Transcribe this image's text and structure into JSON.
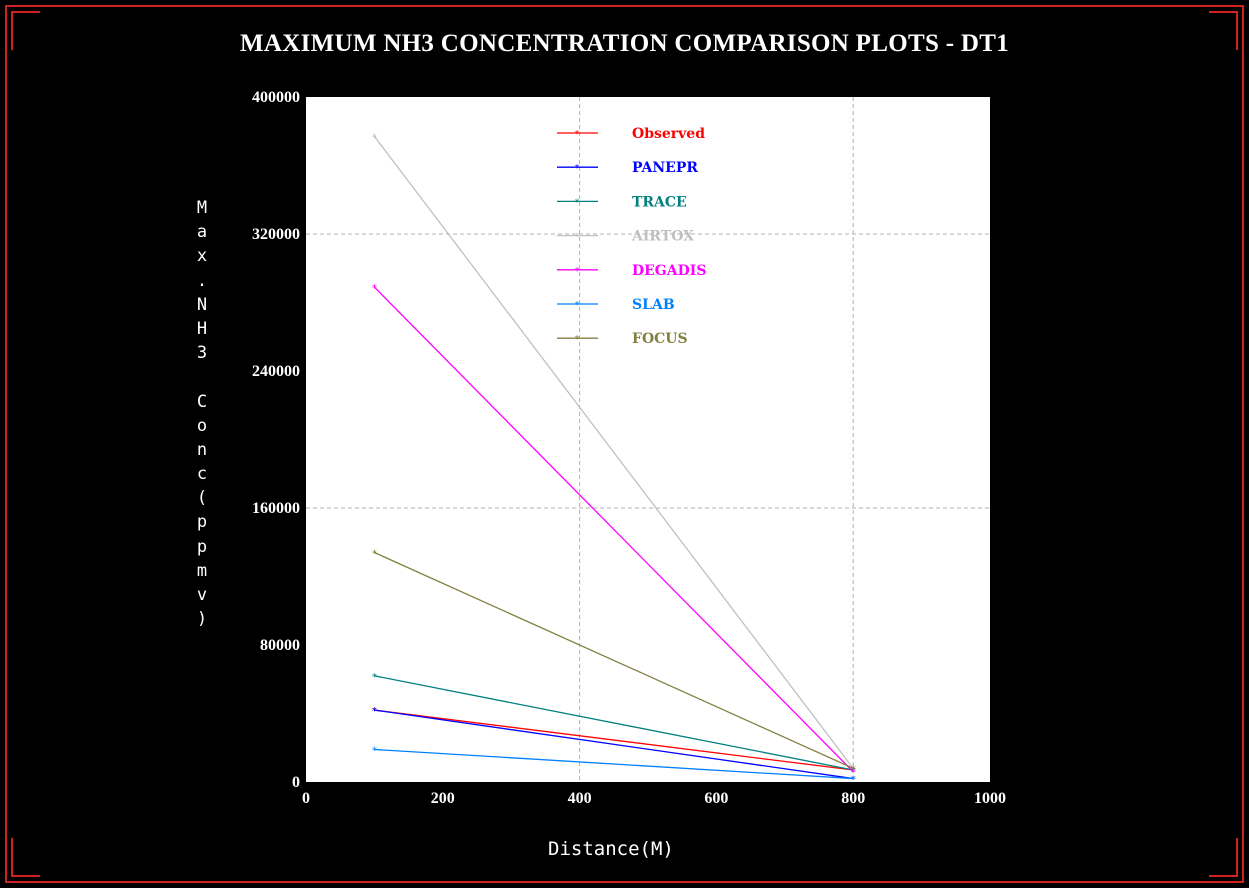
{
  "chart_data": {
    "type": "line",
    "title": "MAXIMUM NH3 CONCENTRATION COMPARISON PLOTS - DT1",
    "xlabel": "Distance(M)",
    "ylabel": "Max.NH3 Conc(ppmv)",
    "xlim": [
      0,
      1000
    ],
    "ylim": [
      0,
      400000
    ],
    "x_ticks": [
      "0",
      "200",
      "400",
      "600",
      "800",
      "1000"
    ],
    "y_ticks": [
      "0",
      "80000",
      "160000",
      "240000",
      "320000",
      "400000"
    ],
    "grid": true,
    "legend_position": "top-center",
    "series": [
      {
        "name": "Observed",
        "color": "#ff0000",
        "x": [
          100,
          800
        ],
        "y": [
          42000,
          7000
        ]
      },
      {
        "name": "PANEPR",
        "color": "#0000ff",
        "x": [
          100,
          800
        ],
        "y": [
          42000,
          2000
        ]
      },
      {
        "name": "TRACE",
        "color": "#008080",
        "x": [
          100,
          800
        ],
        "y": [
          62000,
          7000
        ]
      },
      {
        "name": "AIRTOX",
        "color": "#c0c0c0",
        "x": [
          100,
          800
        ],
        "y": [
          377000,
          8000
        ]
      },
      {
        "name": "DEGADIS",
        "color": "#ff00ff",
        "x": [
          100,
          800
        ],
        "y": [
          289000,
          6000
        ]
      },
      {
        "name": "SLAB",
        "color": "#0080ff",
        "x": [
          100,
          800
        ],
        "y": [
          19000,
          2000
        ]
      },
      {
        "name": "FOCUS",
        "color": "#808040",
        "x": [
          100,
          800
        ],
        "y": [
          134000,
          8000
        ]
      }
    ]
  }
}
